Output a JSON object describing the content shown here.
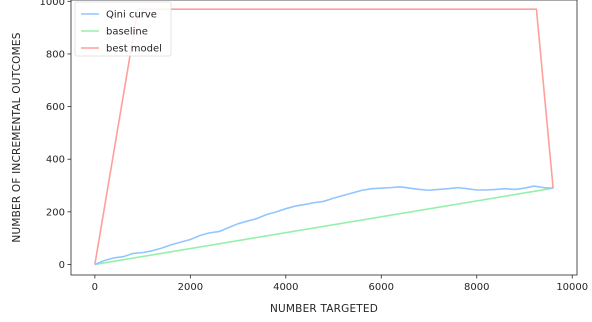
{
  "chart_data": {
    "type": "line",
    "xlabel": "NUMBER TARGETED",
    "ylabel": "NUMBER OF INCREMENTAL OUTCOMES",
    "xlim": [
      -500,
      10100
    ],
    "ylim": [
      -40,
      1005
    ],
    "xticks": [
      0,
      2000,
      4000,
      6000,
      8000,
      10000
    ],
    "yticks": [
      0,
      200,
      400,
      600,
      800,
      1000
    ],
    "xtick_labels": [
      "0",
      "2000",
      "4000",
      "6000",
      "8000",
      "10000"
    ],
    "ytick_labels": [
      "0",
      "200",
      "400",
      "600",
      "800",
      "1000"
    ],
    "grid": false,
    "legend_position": "top-left",
    "series": [
      {
        "name": "Qini curve",
        "color": "#92c6ff",
        "x": [
          0,
          200,
          400,
          600,
          800,
          1000,
          1200,
          1400,
          1600,
          1800,
          2000,
          2200,
          2400,
          2600,
          2800,
          3000,
          3200,
          3400,
          3600,
          3800,
          4000,
          4200,
          4400,
          4600,
          4800,
          5000,
          5200,
          5400,
          5600,
          5800,
          6000,
          6200,
          6400,
          6600,
          6800,
          7000,
          7200,
          7400,
          7600,
          7800,
          8000,
          8200,
          8400,
          8600,
          8800,
          9000,
          9200,
          9400,
          9600
        ],
        "y": [
          0,
          15,
          25,
          30,
          42,
          45,
          52,
          62,
          75,
          85,
          95,
          110,
          120,
          125,
          140,
          155,
          165,
          175,
          190,
          200,
          212,
          222,
          228,
          235,
          240,
          252,
          262,
          272,
          282,
          288,
          290,
          292,
          295,
          290,
          285,
          282,
          285,
          288,
          292,
          288,
          283,
          283,
          285,
          288,
          285,
          290,
          298,
          292,
          290
        ]
      },
      {
        "name": "baseline",
        "color": "#97f0aa",
        "x": [
          0,
          9600
        ],
        "y": [
          0,
          290
        ]
      },
      {
        "name": "best model",
        "color": "#ff9f9a",
        "x": [
          0,
          900,
          9250,
          9600
        ],
        "y": [
          0,
          970,
          970,
          290
        ]
      }
    ]
  }
}
